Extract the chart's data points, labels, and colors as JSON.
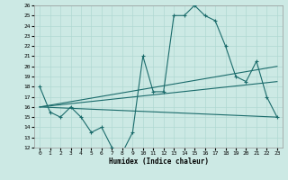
{
  "background_color": "#cce9e4",
  "grid_color": "#b0d8d2",
  "line_color": "#1a6b6b",
  "xlabel": "Humidex (Indice chaleur)",
  "ylim": [
    12,
    26
  ],
  "xlim": [
    -0.5,
    23.5
  ],
  "yticks": [
    12,
    13,
    14,
    15,
    16,
    17,
    18,
    19,
    20,
    21,
    22,
    23,
    24,
    25,
    26
  ],
  "xticks": [
    0,
    1,
    2,
    3,
    4,
    5,
    6,
    7,
    8,
    9,
    10,
    11,
    12,
    13,
    14,
    15,
    16,
    17,
    18,
    19,
    20,
    21,
    22,
    23
  ],
  "line1_x": [
    0,
    1,
    2,
    3,
    4,
    5,
    6,
    7,
    8,
    9,
    10,
    11,
    12,
    13,
    14,
    15,
    16,
    17,
    18,
    19,
    20,
    21,
    22,
    23
  ],
  "line1_y": [
    18,
    15.5,
    15,
    16,
    15,
    13.5,
    14,
    12,
    11.5,
    13.5,
    21,
    17.5,
    17.5,
    25,
    25,
    26,
    25,
    24.5,
    22,
    19,
    18.5,
    20.5,
    17,
    15
  ],
  "line2_x": [
    0,
    23
  ],
  "line2_y": [
    16,
    20
  ],
  "line3_x": [
    0,
    23
  ],
  "line3_y": [
    16,
    18.5
  ],
  "line4_x": [
    0,
    23
  ],
  "line4_y": [
    16,
    15
  ]
}
